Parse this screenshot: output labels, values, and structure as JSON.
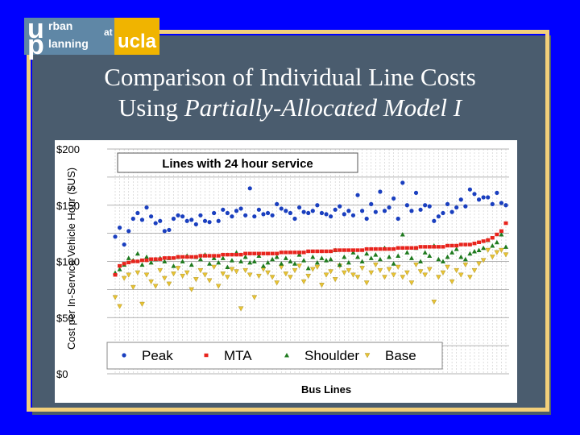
{
  "logo": {
    "letter_u": "u",
    "letter_p": "p",
    "text_rban": "rban",
    "text_lanning": "lanning",
    "text_at": "at",
    "text_ucla": "ucla"
  },
  "slide": {
    "title_line1": "Comparison of Individual Line Costs",
    "title_line2_prefix": "Using ",
    "title_line2_italic": "Partially-Allocated Model I"
  },
  "colors": {
    "background": "#0000ff",
    "frame": "#f2cf7a",
    "peak": "#1a3fbf",
    "mta": "#e8231c",
    "shoulder": "#1e7a1e",
    "base": "#e8c233"
  },
  "chart_data": {
    "type": "scatter",
    "title": "Lines with 24 hour service",
    "xlabel": "Bus Lines",
    "ylabel": "Cost per In-Service Vehicle Hour ($US)",
    "ylim": [
      0,
      200
    ],
    "yticks": [
      "$200",
      "$150",
      "$100",
      "$50",
      "$0"
    ],
    "legend_position": "bottom",
    "grid": true,
    "series": [
      {
        "name": "Peak",
        "marker": "circle",
        "values": [
          122,
          130,
          115,
          127,
          138,
          143,
          137,
          148,
          140,
          134,
          136,
          127,
          128,
          138,
          141,
          140,
          136,
          137,
          133,
          141,
          136,
          135,
          143,
          136,
          146,
          143,
          140,
          145,
          147,
          141,
          165,
          140,
          146,
          142,
          143,
          141,
          151,
          147,
          145,
          143,
          138,
          148,
          144,
          143,
          145,
          150,
          143,
          142,
          140,
          146,
          149,
          142,
          145,
          141,
          159,
          145,
          138,
          151,
          144,
          162,
          145,
          148,
          156,
          138,
          170,
          150,
          145,
          161,
          146,
          150,
          149,
          136,
          140,
          143,
          151,
          144,
          148,
          155,
          149,
          164,
          160,
          155,
          157,
          157,
          151,
          161,
          152,
          150
        ]
      },
      {
        "name": "MTA",
        "marker": "square",
        "values": [
          88,
          96,
          98,
          99,
          100,
          100,
          101,
          101,
          102,
          102,
          102,
          103,
          103,
          103,
          104,
          104,
          104,
          104,
          104,
          105,
          105,
          105,
          105,
          105,
          106,
          106,
          106,
          106,
          106,
          107,
          107,
          107,
          107,
          107,
          107,
          107,
          107,
          108,
          108,
          108,
          108,
          108,
          108,
          109,
          109,
          109,
          109,
          109,
          109,
          110,
          110,
          110,
          110,
          110,
          110,
          110,
          111,
          111,
          111,
          111,
          111,
          111,
          111,
          112,
          112,
          112,
          112,
          112,
          113,
          113,
          113,
          113,
          113,
          113,
          114,
          114,
          114,
          115,
          115,
          115,
          116,
          117,
          118,
          119,
          121,
          124,
          127,
          134
        ]
      },
      {
        "name": "Shoulder",
        "marker": "triangle-up",
        "values": [
          90,
          93,
          97,
          103,
          101,
          107,
          97,
          104,
          99,
          102,
          103,
          100,
          103,
          96,
          104,
          100,
          105,
          97,
          104,
          102,
          106,
          98,
          103,
          99,
          103,
          95,
          101,
          108,
          100,
          104,
          99,
          100,
          105,
          96,
          99,
          102,
          104,
          98,
          103,
          100,
          98,
          106,
          101,
          94,
          104,
          99,
          103,
          101,
          102,
          110,
          97,
          104,
          99,
          108,
          104,
          100,
          107,
          103,
          106,
          102,
          112,
          104,
          98,
          105,
          124,
          108,
          103,
          112,
          100,
          108,
          105,
          114,
          102,
          100,
          104,
          108,
          111,
          104,
          102,
          107,
          109,
          110,
          112,
          119,
          114,
          117,
          124,
          113
        ]
      },
      {
        "name": "Base",
        "marker": "triangle-down",
        "values": [
          68,
          60,
          85,
          88,
          77,
          90,
          62,
          88,
          82,
          78,
          92,
          85,
          80,
          89,
          94,
          87,
          90,
          75,
          84,
          92,
          88,
          83,
          95,
          78,
          89,
          86,
          93,
          91,
          58,
          92,
          88,
          68,
          87,
          93,
          90,
          86,
          81,
          95,
          89,
          86,
          92,
          96,
          82,
          87,
          93,
          95,
          79,
          88,
          91,
          84,
          96,
          90,
          92,
          88,
          86,
          94,
          81,
          90,
          97,
          92,
          86,
          93,
          88,
          95,
          86,
          90,
          81,
          97,
          91,
          88,
          93,
          64,
          86,
          90,
          95,
          82,
          92,
          88,
          97,
          86,
          92,
          98,
          101,
          110,
          104,
          108,
          110,
          106
        ]
      }
    ]
  }
}
